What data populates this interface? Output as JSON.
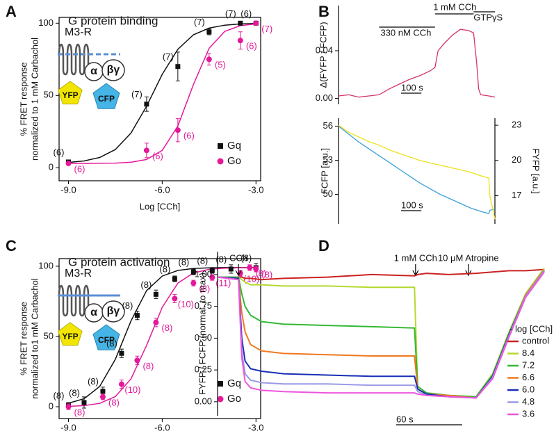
{
  "chart_data": [
    {
      "type": "scatter",
      "panel": "A",
      "title": "G protein binding",
      "diagram": {
        "receptor": "M3-R",
        "alpha": "α",
        "betagamma": "βγ",
        "donor": "YFP",
        "acceptor": "CFP"
      },
      "xlabel": "Log [CCh]",
      "ylabel": [
        "% FRET response",
        "normalized to 1 mM Carbachol"
      ],
      "xlim": [
        -9.3,
        -2.85
      ],
      "xticks": [
        {
          "value": -9,
          "label": "-9.0"
        },
        {
          "value": -6,
          "label": "-6.0"
        },
        {
          "value": -3,
          "label": "-3.0"
        }
      ],
      "ylim": [
        -9,
        104
      ],
      "yticks": [
        0,
        50,
        100
      ],
      "fit_x": [
        -9,
        -8.5,
        -8,
        -7.5,
        -7,
        -6.5,
        -6,
        -5.5,
        -5,
        -4.5,
        -4,
        -3.5,
        -3
      ],
      "series": [
        {
          "name": "Gq",
          "color": "#111111",
          "marker": "square",
          "x": [
            -9,
            -6.5,
            -5.5,
            -4.5,
            -3.5,
            -3
          ],
          "values": [
            4,
            44,
            70,
            94,
            100,
            100
          ],
          "errors": [
            1,
            5,
            10,
            2,
            1,
            0.5
          ],
          "labels": [
            "(6)",
            "(7)",
            "(7)",
            "(7)",
            "(7)",
            "(6)"
          ],
          "fit": [
            3.7,
            4.7,
            7.1,
            12.6,
            24,
            42.6,
            64.6,
            82,
            92,
            96.6,
            98.6,
            99.5,
            99.8
          ]
        },
        {
          "name": "Go",
          "color": "#e4199a",
          "marker": "circle",
          "x": [
            -9,
            -6.5,
            -5.5,
            -4.5,
            -3.5,
            -3
          ],
          "values": [
            3,
            12,
            26,
            75,
            88,
            100
          ],
          "errors": [
            1,
            5,
            8,
            4,
            6,
            1
          ],
          "labels": [
            "(6)",
            "(6)",
            "(6)",
            "(5)",
            "(6)",
            "(7)"
          ],
          "fit": [
            3,
            3,
            3.1,
            3.2,
            3.8,
            5.7,
            12,
            28.9,
            57.6,
            82.6,
            94.3,
            98.3,
            99.5
          ]
        }
      ]
    },
    {
      "type": "line",
      "panel": "B",
      "ylabel": "Δ(FYFP / FCFP)",
      "x": [
        0,
        50,
        100,
        150,
        200,
        250,
        300,
        350,
        400,
        450,
        475,
        490,
        520,
        560,
        600,
        640,
        665,
        680,
        690,
        700,
        740,
        770
      ],
      "xlim": [
        0,
        770
      ],
      "ylim": [
        -0.005,
        0.078
      ],
      "yticks": [
        {
          "value": 0,
          "label": "0.00"
        },
        0.04
      ],
      "intervals": [
        {
          "label": "330 nM CCh",
          "start": 200,
          "end": 475
        },
        {
          "label": "1 mM CCh",
          "start": 475,
          "end": 665
        },
        {
          "label": "GTPγS",
          "start": 665,
          "end": 770
        }
      ],
      "scalebar": {
        "value": 100,
        "label": "100 s"
      },
      "series": [
        {
          "color": "#d6336c",
          "values": [
            0.002,
            0.003,
            0.001,
            0.002,
            0.003,
            0.008,
            0.012,
            0.016,
            0.019,
            0.023,
            0.026,
            0.04,
            0.046,
            0.053,
            0.058,
            0.057,
            0.055,
            0.03,
            0.008,
            0.003,
            0.002,
            0.001
          ]
        }
      ]
    },
    {
      "type": "line",
      "ylabel": "FCFP [a.u.]",
      "y2label": "FYFP [a.u.]",
      "x": [
        0,
        50,
        100,
        150,
        200,
        250,
        300,
        350,
        400,
        450,
        500,
        550,
        600,
        650,
        700,
        740,
        745,
        770
      ],
      "xlim": [
        0,
        770
      ],
      "ylim": [
        47.4,
        56.7
      ],
      "yticks": [
        50,
        53,
        56
      ],
      "y2lim": [
        14.6,
        23.6
      ],
      "y2ticks": [
        17,
        20,
        23
      ],
      "scalebar": {
        "value": 100,
        "label": "100 s"
      },
      "series": [
        {
          "color": "#3aa0dc",
          "values": [
            56.0,
            55.3,
            54.6,
            54.0,
            53.4,
            52.8,
            52.2,
            51.6,
            51.0,
            50.5,
            50.0,
            49.6,
            49.2,
            48.8,
            48.5,
            48.3,
            48.6,
            48.7
          ]
        },
        {
          "color": "#ece11a",
          "axis": "y2",
          "values": [
            23.0,
            22.4,
            22.0,
            21.6,
            21.3,
            20.9,
            20.6,
            20.3,
            20.0,
            19.8,
            19.6,
            19.4,
            19.2,
            19.0,
            18.7,
            18.5,
            17.0,
            15.0
          ]
        }
      ]
    },
    {
      "type": "scatter",
      "panel": "C",
      "title": "G protein activation",
      "diagram": {
        "receptor": "M3-R",
        "alpha": "α",
        "betagamma": "βγ",
        "donor": "YFP",
        "acceptor": "CFP"
      },
      "xlabel": "Log [CCh]",
      "ylabel": [
        "% FRET response",
        "normalized to1 mM Carbachol"
      ],
      "xlim": [
        -9.3,
        -2.85
      ],
      "xticks": [
        {
          "value": -9,
          "label": "-9.0"
        },
        {
          "value": -6,
          "label": "-6.0"
        },
        {
          "value": -3,
          "label": "-3.0"
        }
      ],
      "ylim": [
        -8.4,
        105.4
      ],
      "yticks": [
        0,
        50,
        100
      ],
      "fit_x": [
        -9,
        -8.5,
        -8,
        -7.5,
        -7,
        -6.5,
        -6,
        -5.5,
        -5,
        -4.5,
        -4,
        -3.5,
        -3
      ],
      "series": [
        {
          "name": "Gq",
          "color": "#111111",
          "marker": "square",
          "x": [
            -9,
            -8.5,
            -7.9,
            -7.3,
            -6.8,
            -6.2,
            -5.6,
            -5.0,
            -4.4,
            -3.8,
            -3.0
          ],
          "values": [
            1,
            3,
            11,
            38,
            65,
            80,
            91,
            96,
            97,
            98,
            99
          ],
          "errors": [
            2,
            4,
            3,
            3,
            3,
            3,
            2,
            2,
            2,
            3,
            3
          ],
          "labels": [
            "(8)",
            "(8)",
            "(8)",
            "(8)",
            "(8)",
            "(8)",
            "(8)",
            "(8)",
            "(8)",
            "(8)",
            "(8)"
          ],
          "fit": [
            2.5,
            5.7,
            14.4,
            33.7,
            61,
            82.7,
            93,
            97,
            98.4,
            98.8,
            99,
            99,
            99
          ]
        },
        {
          "name": "Go",
          "color": "#e4199a",
          "marker": "circle",
          "x": [
            -9,
            -7.9,
            -7.3,
            -6.8,
            -6.2,
            -5.6,
            -5.0,
            -4.4,
            -3.5,
            -3.2,
            -3.0
          ],
          "values": [
            0,
            7,
            16,
            33,
            60,
            77,
            88,
            92,
            95,
            99,
            98
          ],
          "errors": [
            2,
            2,
            3,
            3,
            3,
            3,
            2,
            2,
            2,
            2,
            2
          ],
          "labels": [
            "(8)",
            "(8)",
            "(10)",
            "(8)",
            "(8)",
            "(10)",
            "(8)",
            "(11)",
            "(10)",
            "(8)",
            "(8)"
          ],
          "fit": [
            0.25,
            0.8,
            2.4,
            7.2,
            19.8,
            43.7,
            70.7,
            88,
            95.2,
            97.8,
            98.6,
            98.9,
            99
          ]
        }
      ]
    },
    {
      "type": "line",
      "panel": "D",
      "ylabel": "FYFP / FCFP (normal. to max)",
      "legend_title": "- log [CCh]",
      "x": [
        0,
        19,
        22,
        25,
        30,
        40,
        60,
        100,
        140,
        179,
        182,
        190,
        210,
        235,
        250,
        265,
        280,
        297
      ],
      "xlim": [
        0,
        297
      ],
      "ylim": [
        -0.11,
        1.18
      ],
      "yticks": [
        {
          "value": 0,
          "label": "0.00"
        },
        {
          "value": 0.25,
          "label": "0.25"
        },
        {
          "value": 0.5,
          "label": "0.50"
        },
        {
          "value": 0.75,
          "label": "0.75"
        },
        {
          "value": 1,
          "label": "1.00"
        }
      ],
      "annotations": [
        {
          "label": "CCh",
          "x": 19
        },
        {
          "label": "1 mM CCh",
          "x": 180
        },
        {
          "label": "10 μM Atropine",
          "x": 228
        }
      ],
      "scalebar": {
        "value": 60,
        "label": "60 s"
      },
      "series": [
        {
          "name": "control",
          "color": "#cc2222",
          "values": [
            0.98,
            0.98,
            0.98,
            0.97,
            0.97,
            0.96,
            0.97,
            0.98,
            1.0,
            0.99,
            1.0,
            1.01,
            1.0,
            1.01,
            1.02,
            1.03,
            1.03,
            1.04
          ]
        },
        {
          "name": "8.4",
          "color": "#b5d930",
          "values": [
            0.98,
            0.98,
            0.96,
            0.94,
            0.92,
            0.92,
            0.91,
            0.91,
            0.9,
            0.9,
            0.1,
            0.06,
            0.05,
            0.04,
            0.22,
            0.55,
            0.85,
            1.05
          ]
        },
        {
          "name": "7.2",
          "color": "#33b833",
          "values": [
            0.98,
            0.98,
            0.85,
            0.75,
            0.68,
            0.63,
            0.61,
            0.6,
            0.59,
            0.58,
            0.12,
            0.07,
            0.05,
            0.04,
            0.21,
            0.54,
            0.84,
            1.04
          ]
        },
        {
          "name": "6.6",
          "color": "#f07820",
          "values": [
            0.98,
            0.97,
            0.7,
            0.55,
            0.45,
            0.4,
            0.38,
            0.37,
            0.36,
            0.36,
            0.1,
            0.06,
            0.05,
            0.03,
            0.2,
            0.53,
            0.84,
            1.04
          ]
        },
        {
          "name": "6.0",
          "color": "#1a2eb5",
          "values": [
            0.98,
            0.97,
            0.5,
            0.32,
            0.26,
            0.24,
            0.22,
            0.21,
            0.2,
            0.2,
            0.1,
            0.06,
            0.04,
            0.03,
            0.2,
            0.53,
            0.83,
            1.03
          ]
        },
        {
          "name": "4.8",
          "color": "#9a9ae6",
          "values": [
            0.98,
            0.96,
            0.4,
            0.22,
            0.17,
            0.15,
            0.14,
            0.14,
            0.13,
            0.13,
            0.08,
            0.05,
            0.04,
            0.03,
            0.19,
            0.52,
            0.83,
            1.03
          ]
        },
        {
          "name": "3.6",
          "color": "#ee55dd",
          "values": [
            0.98,
            0.96,
            0.35,
            0.16,
            0.11,
            0.09,
            0.08,
            0.07,
            0.07,
            0.07,
            0.06,
            0.05,
            0.04,
            0.03,
            0.18,
            0.51,
            0.82,
            1.02
          ]
        }
      ]
    }
  ]
}
